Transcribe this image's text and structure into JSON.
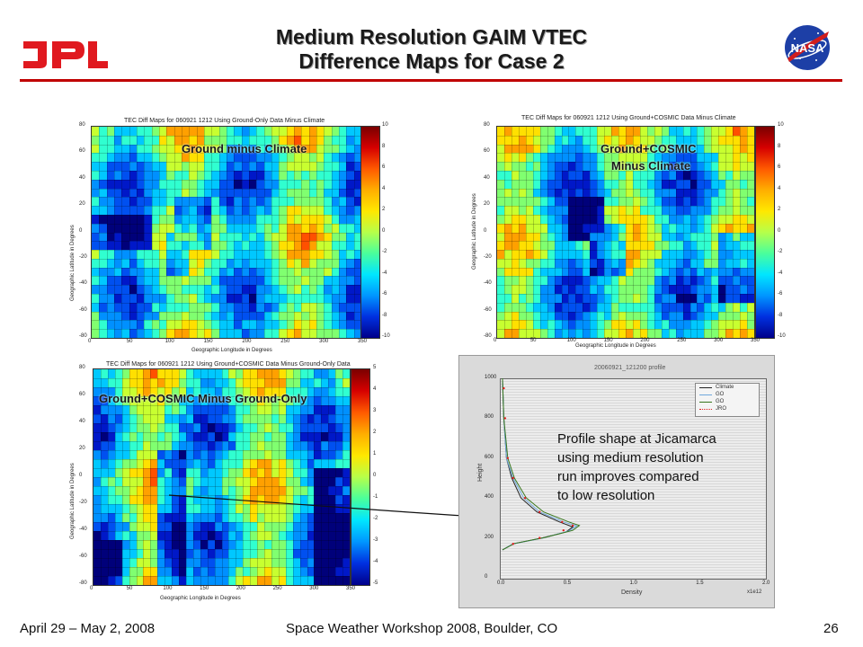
{
  "header": {
    "title_line1": "Medium Resolution GAIM VTEC",
    "title_line2": "Difference Maps for Case 2",
    "left_logo_text": "JPL",
    "right_logo_text": "NASA",
    "accent_color": "#c00000"
  },
  "panels": [
    {
      "title": "TEC Diff Maps for 060921 1212 Using Ground-Only Data Minus Climate",
      "overlay": "Ground minus Climate",
      "ylabel": "Geographic Latitude in Degrees",
      "xlabel": "Geographic Longitude in Degrees",
      "yticks": [
        "80",
        "60",
        "40",
        "20",
        "0",
        "-20",
        "-40",
        "-60",
        "-80"
      ],
      "xticks": [
        "0",
        "50",
        "100",
        "150",
        "200",
        "250",
        "300",
        "350"
      ],
      "cbar_ticks": [
        "10",
        "8",
        "6",
        "4",
        "2",
        "0",
        "-2",
        "-4",
        "-6",
        "-8",
        "-10"
      ]
    },
    {
      "title": "TEC Diff Maps for 060921 1212 Using Ground+COSMIC Data Minus Climate",
      "overlay_line1": "Ground+COSMIC",
      "overlay_line2": "Minus Climate",
      "ylabel": "Geographic Latitude in Degrees",
      "xlabel": "Geographic Longitude in Degrees",
      "yticks": [
        "80",
        "60",
        "40",
        "20",
        "0",
        "-20",
        "-40",
        "-60",
        "-80"
      ],
      "xticks": [
        "0",
        "50",
        "100",
        "150",
        "200",
        "250",
        "300",
        "350"
      ],
      "cbar_ticks": [
        "10",
        "8",
        "6",
        "4",
        "2",
        "0",
        "-2",
        "-4",
        "-6",
        "-8",
        "-10"
      ]
    },
    {
      "title": "TEC Diff Maps for 060921 1212 Using Ground+COSMIC Data Minus Ground-Only Data",
      "overlay": "Ground+COSMIC Minus Ground-Only",
      "ylabel": "Geographic Latitude in Degrees",
      "xlabel": "Geographic Longitude in Degrees",
      "yticks": [
        "80",
        "60",
        "40",
        "20",
        "0",
        "-20",
        "-40",
        "-60",
        "-80"
      ],
      "xticks": [
        "0",
        "50",
        "100",
        "150",
        "200",
        "250",
        "300",
        "350"
      ],
      "cbar_ticks": [
        "5",
        "4",
        "3",
        "2",
        "1",
        "0",
        "-1",
        "-2",
        "-3",
        "-4",
        "-5"
      ]
    }
  ],
  "profile_plot": {
    "title": "20060921_121200 profile",
    "ylabel": "Height",
    "xlabel": "Density",
    "x_multiplier": "x1e12",
    "yticks": [
      "1000",
      "800",
      "600",
      "400",
      "200",
      "0"
    ],
    "xticks": [
      "0.0",
      "0.5",
      "1.0",
      "1.5",
      "2.0"
    ],
    "legend": [
      "Climate",
      "GO",
      "GO",
      "JRO"
    ]
  },
  "chart_data": {
    "type": "line",
    "title": "20060921_121200 profile",
    "xlabel": "Density",
    "ylabel": "Height",
    "xlim": [
      0,
      2.0
    ],
    "ylim": [
      0,
      1000
    ],
    "series": [
      {
        "name": "Climate",
        "x": [
          0.02,
          0.03,
          0.05,
          0.09,
          0.16,
          0.28,
          0.45,
          0.55,
          0.5,
          0.32,
          0.1,
          0.02
        ],
        "y": [
          1000,
          800,
          600,
          500,
          400,
          330,
          280,
          255,
          230,
          200,
          170,
          140
        ]
      },
      {
        "name": "GO",
        "x": [
          0.02,
          0.03,
          0.05,
          0.1,
          0.18,
          0.3,
          0.48,
          0.58,
          0.52,
          0.33,
          0.1,
          0.02
        ],
        "y": [
          1000,
          800,
          600,
          500,
          400,
          330,
          280,
          260,
          235,
          200,
          170,
          140
        ]
      },
      {
        "name": "GO",
        "x": [
          0.02,
          0.03,
          0.06,
          0.11,
          0.2,
          0.33,
          0.52,
          0.6,
          0.55,
          0.34,
          0.11,
          0.02
        ],
        "y": [
          1000,
          800,
          600,
          500,
          400,
          330,
          280,
          262,
          238,
          202,
          172,
          140
        ]
      },
      {
        "name": "JRO",
        "x": [
          0.03,
          0.04,
          0.06,
          0.1,
          0.19,
          0.3,
          0.47,
          0.55,
          0.48,
          0.3,
          0.1
        ],
        "y": [
          950,
          800,
          600,
          500,
          400,
          330,
          280,
          262,
          238,
          200,
          170
        ]
      }
    ]
  },
  "annotation": {
    "line1": "Profile shape at Jicamarca",
    "line2": "using medium resolution",
    "line3": "run improves compared",
    "line4": "to low resolution"
  },
  "footer": {
    "left": "April 29 – May 2, 2008",
    "center": "Space Weather Workshop 2008, Boulder, CO",
    "right": "26"
  }
}
